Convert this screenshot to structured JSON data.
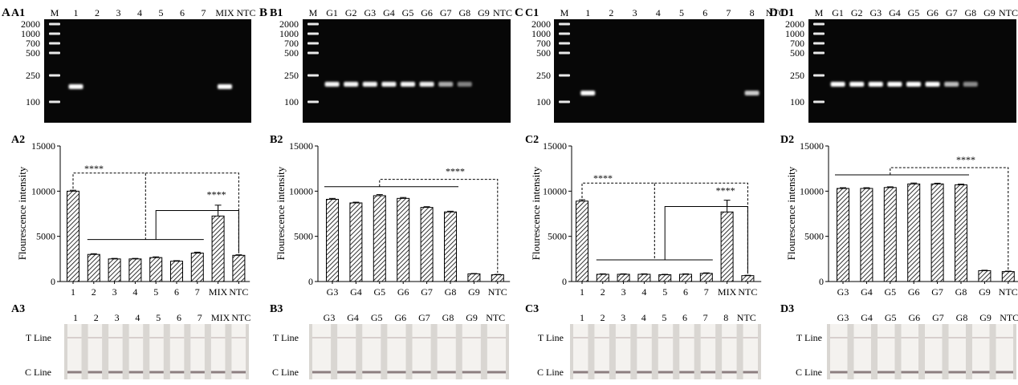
{
  "panel_letters": {
    "A": "A",
    "B": "B",
    "C": "C",
    "D": "D"
  },
  "gels": [
    {
      "label": "A1",
      "lanes": [
        "M",
        "1",
        "2",
        "3",
        "4",
        "5",
        "6",
        "7",
        "MIX",
        "NTC"
      ],
      "ladder": [
        "2000",
        "1000",
        "700",
        "500",
        "250",
        "100"
      ],
      "bands": [
        0,
        1.0,
        0,
        0,
        0,
        0,
        0,
        0,
        1.0,
        0
      ]
    },
    {
      "label": "B1",
      "lanes": [
        "M",
        "G1",
        "G2",
        "G3",
        "G4",
        "G5",
        "G6",
        "G7",
        "G8",
        "G9",
        "NTC"
      ],
      "ladder": [
        "2000",
        "1000",
        "700",
        "500",
        "250",
        "100"
      ],
      "bands": [
        0,
        0.95,
        0.95,
        0.95,
        0.95,
        0.95,
        0.9,
        0.5,
        0.25,
        0,
        0
      ]
    },
    {
      "label": "C1",
      "lanes": [
        "M",
        "1",
        "2",
        "3",
        "4",
        "5",
        "6",
        "7",
        "8",
        "NTC"
      ],
      "ladder": [
        "2000",
        "1000",
        "700",
        "500",
        "250",
        "100"
      ],
      "bands": [
        0,
        1.0,
        0,
        0,
        0,
        0,
        0,
        0,
        0.7,
        0
      ]
    },
    {
      "label": "D1",
      "lanes": [
        "M",
        "G1",
        "G2",
        "G3",
        "G4",
        "G5",
        "G6",
        "G7",
        "G8",
        "G9",
        "NTC"
      ],
      "ladder": [
        "2000",
        "1000",
        "700",
        "500",
        "250",
        "100"
      ],
      "bands": [
        0,
        1.0,
        1.0,
        1.0,
        1.0,
        1.0,
        1.0,
        0.6,
        0.3,
        0,
        0
      ]
    }
  ],
  "chart_data": [
    {
      "label": "A2",
      "type": "bar",
      "ylabel": "Flourescence intensity",
      "ylim": [
        0,
        15000
      ],
      "yticks": [
        "0",
        "5000",
        "10000",
        "15000"
      ],
      "categories": [
        "1",
        "2",
        "3",
        "4",
        "5",
        "6",
        "7",
        "MIX",
        "NTC"
      ],
      "values": [
        10000,
        3000,
        2500,
        2500,
        2650,
        2250,
        3150,
        7250,
        2900
      ],
      "errors": [
        100,
        80,
        60,
        60,
        80,
        60,
        100,
        1200,
        60
      ],
      "significance": [
        "****",
        "****"
      ]
    },
    {
      "label": "B2",
      "type": "bar",
      "ylabel": "Flourescence intensity",
      "ylim": [
        0,
        15000
      ],
      "yticks": [
        "0",
        "5000",
        "10000",
        "15000"
      ],
      "categories": [
        "G3",
        "G4",
        "G5",
        "G6",
        "G7",
        "G8",
        "G9",
        "NTC"
      ],
      "values": [
        9100,
        8700,
        9500,
        9200,
        8200,
        7700,
        850,
        750
      ],
      "errors": [
        100,
        80,
        120,
        100,
        80,
        80,
        40,
        40
      ],
      "significance": [
        "****"
      ]
    },
    {
      "label": "C2",
      "type": "bar",
      "ylabel": "Flourescence intensity",
      "ylim": [
        0,
        15000
      ],
      "yticks": [
        "0",
        "5000",
        "10000",
        "15000"
      ],
      "categories": [
        "1",
        "2",
        "3",
        "4",
        "5",
        "6",
        "7",
        "MIX",
        "NTC"
      ],
      "values": [
        8900,
        800,
        800,
        800,
        750,
        800,
        900,
        7700,
        650
      ],
      "errors": [
        150,
        50,
        50,
        50,
        50,
        50,
        60,
        1300,
        40
      ],
      "significance": [
        "****",
        "****"
      ]
    },
    {
      "label": "D2",
      "type": "bar",
      "ylabel": "Flourescence intensity",
      "ylim": [
        0,
        15000
      ],
      "yticks": [
        "0",
        "5000",
        "10000",
        "15000"
      ],
      "categories": [
        "G3",
        "G4",
        "G5",
        "G6",
        "G7",
        "G8",
        "G9",
        "NTC"
      ],
      "values": [
        10300,
        10300,
        10400,
        10800,
        10800,
        10700,
        1200,
        1100
      ],
      "errors": [
        80,
        80,
        80,
        100,
        80,
        80,
        50,
        50
      ],
      "significance": [
        "****"
      ]
    }
  ],
  "strips": [
    {
      "label": "A3",
      "lanes": [
        "1",
        "2",
        "3",
        "4",
        "5",
        "6",
        "7",
        "MIX",
        "NTC"
      ],
      "t_line": "T Line",
      "c_line": "C Line"
    },
    {
      "label": "B3",
      "lanes": [
        "G3",
        "G4",
        "G5",
        "G6",
        "G7",
        "G8",
        "G9",
        "NTC"
      ],
      "t_line": "T Line",
      "c_line": "C Line"
    },
    {
      "label": "C3",
      "lanes": [
        "1",
        "2",
        "3",
        "4",
        "5",
        "6",
        "7",
        "8",
        "NTC"
      ],
      "t_line": "T Line",
      "c_line": "C Line"
    },
    {
      "label": "D3",
      "lanes": [
        "G3",
        "G4",
        "G5",
        "G6",
        "G7",
        "G8",
        "G9",
        "NTC"
      ],
      "t_line": "T Line",
      "c_line": "C Line"
    }
  ]
}
